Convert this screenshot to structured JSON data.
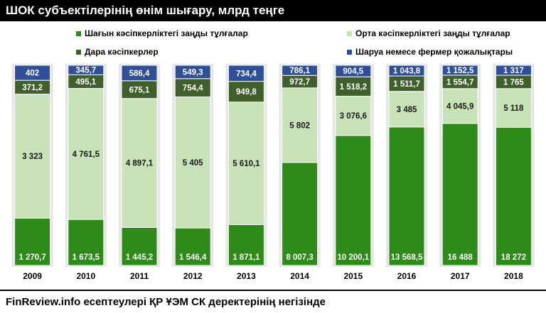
{
  "title": "ШОК субъектілерінің өнім шығару, млрд теңге",
  "source": "FinReview.info есептеулері ҚР ҰЭМ СК деректерінің негізінде",
  "colors": {
    "small": "#2e8b1a",
    "medium": "#c6e2b6",
    "individual": "#3f5f2b",
    "farm": "#2f4f99",
    "bar_bg": "#e6e6e6"
  },
  "chart_data": {
    "type": "bar",
    "stacked": true,
    "normalized": true,
    "categories": [
      "2009",
      "2010",
      "2011",
      "2012",
      "2013",
      "2014",
      "2015",
      "2016",
      "2017",
      "2018"
    ],
    "series": [
      {
        "name": "Шағын кәсіпкерліктегі заңды тұлғалар",
        "color_key": "small",
        "values": [
          1270.7,
          1673.5,
          1445.2,
          1546.4,
          1871.1,
          8007.3,
          10200.1,
          13568.5,
          16488,
          18272
        ],
        "labels": [
          "1 270,7",
          "1 673,5",
          "1 445,2",
          "1 546,4",
          "1 871,1",
          "8 007,3",
          "10 200,1",
          "13 568,5",
          "16 488",
          "18 272"
        ]
      },
      {
        "name": "Орта кәсіпкерліктегі заңды тұлғалар",
        "color_key": "medium",
        "values": [
          3323,
          4761.5,
          4897.1,
          5405,
          5610.1,
          5802,
          3076.6,
          3485,
          4045.9,
          5118
        ],
        "labels": [
          "3 323",
          "4 761,5",
          "4 897,1",
          "5 405",
          "5 610,1",
          "5 802",
          "3 076,6",
          "3 485",
          "4 045,9",
          "5 118"
        ]
      },
      {
        "name": "Дара кәсіпкерлер",
        "color_key": "individual",
        "values": [
          371.2,
          495.1,
          675.1,
          754.4,
          949.8,
          972.7,
          1518.2,
          1511.7,
          1554.7,
          1765
        ],
        "labels": [
          "371,2",
          "495,1",
          "675,1",
          "754,4",
          "949,8",
          "972,7",
          "1 518,2",
          "1 511,7",
          "1 554,7",
          "1 765"
        ]
      },
      {
        "name": "Шаруа немесе фермер қожалықтары",
        "color_key": "farm",
        "values": [
          402,
          345.7,
          586.4,
          549.3,
          734.4,
          786.1,
          904.5,
          1043.8,
          1152.5,
          1317
        ],
        "labels": [
          "402",
          "345,7",
          "586,4",
          "549,3",
          "734,4",
          "786,1",
          "904,5",
          "1 043,8",
          "1 152,5",
          "1 317"
        ]
      }
    ],
    "legend_position": "top",
    "grid": false
  }
}
